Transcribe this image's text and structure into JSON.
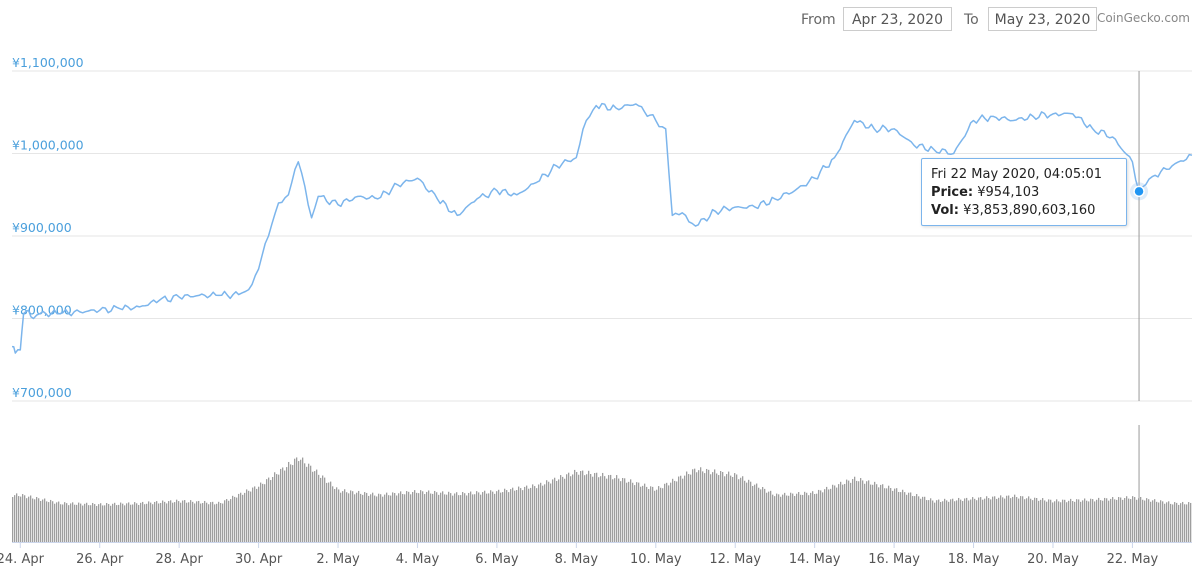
{
  "header": {
    "from_label": "From",
    "from_value": "Apr 23, 2020",
    "to_label": "To",
    "to_value": "May 23, 2020",
    "credit": "CoinGecko.com"
  },
  "tooltip": {
    "date": "Fri 22 May 2020, 04:05:01",
    "price_label": "Price:",
    "price_value": "¥954,103",
    "vol_label": "Vol:",
    "vol_value": "¥3,853,890,603,160"
  },
  "colors": {
    "price_line": "#7cb5ec",
    "volume_bars": "#9e9e9e",
    "axis_text": "#4a9fdc",
    "grid": "#e6e6e6"
  },
  "chart_data": [
    {
      "type": "line",
      "title": "",
      "xlabel": "",
      "ylabel": "",
      "ylim": [
        700000,
        1100000
      ],
      "y_ticks": [
        "¥700,000",
        "¥800,000",
        "¥900,000",
        "¥1,000,000",
        "¥1,100,000"
      ],
      "x_ticks": [
        "24. Apr",
        "26. Apr",
        "28. Apr",
        "30. Apr",
        "2. May",
        "4. May",
        "6. May",
        "8. May",
        "10. May",
        "12. May",
        "14. May",
        "16. May",
        "18. May",
        "20. May",
        "22. May"
      ],
      "x_range": [
        "2020-04-23T19:00",
        "2020-05-23T12:00"
      ],
      "grid": true,
      "series": [
        {
          "points": [
            [
              "2020-04-23T19:00",
              766000
            ],
            [
              "2020-04-23T21:00",
              758000
            ],
            [
              "2020-04-24T00:00",
              762000
            ],
            [
              "2020-04-24T02:00",
              806000
            ],
            [
              "2020-04-24T05:00",
              810000
            ],
            [
              "2020-04-24T08:00",
              800000
            ],
            [
              "2020-04-24T12:00",
              806000
            ],
            [
              "2020-04-25T00:00",
              806000
            ],
            [
              "2020-04-25T12:00",
              808000
            ],
            [
              "2020-04-26T00:00",
              810000
            ],
            [
              "2020-04-26T12:00",
              812000
            ],
            [
              "2020-04-27T00:00",
              814000
            ],
            [
              "2020-04-27T12:00",
              822000
            ],
            [
              "2020-04-28T00:00",
              826000
            ],
            [
              "2020-04-28T12:00",
              828000
            ],
            [
              "2020-04-29T00:00",
              828000
            ],
            [
              "2020-04-29T12:00",
              829000
            ],
            [
              "2020-04-29T18:00",
              835000
            ],
            [
              "2020-04-30T00:00",
              860000
            ],
            [
              "2020-04-30T06:00",
              900000
            ],
            [
              "2020-04-30T12:00",
              940000
            ],
            [
              "2020-04-30T18:00",
              950000
            ],
            [
              "2020-05-01T00:00",
              990000
            ],
            [
              "2020-05-01T04:00",
              960000
            ],
            [
              "2020-05-01T08:00",
              922000
            ],
            [
              "2020-05-01T12:00",
              948000
            ],
            [
              "2020-05-02T00:00",
              938000
            ],
            [
              "2020-05-02T12:00",
              948000
            ],
            [
              "2020-05-03T00:00",
              945000
            ],
            [
              "2020-05-03T12:00",
              962000
            ],
            [
              "2020-05-04T00:00",
              970000
            ],
            [
              "2020-05-04T12:00",
              945000
            ],
            [
              "2020-05-05T00:00",
              925000
            ],
            [
              "2020-05-05T12:00",
              945000
            ],
            [
              "2020-05-06T00:00",
              955000
            ],
            [
              "2020-05-06T12:00",
              950000
            ],
            [
              "2020-05-07T00:00",
              965000
            ],
            [
              "2020-05-07T12:00",
              985000
            ],
            [
              "2020-05-08T00:00",
              995000
            ],
            [
              "2020-05-08T06:00",
              1040000
            ],
            [
              "2020-05-08T12:00",
              1058000
            ],
            [
              "2020-05-09T00:00",
              1055000
            ],
            [
              "2020-05-09T12:00",
              1060000
            ],
            [
              "2020-05-10T00:00",
              1040000
            ],
            [
              "2020-05-10T06:00",
              1030000
            ],
            [
              "2020-05-10T10:00",
              925000
            ],
            [
              "2020-05-10T18:00",
              925000
            ],
            [
              "2020-05-11T00:00",
              912000
            ],
            [
              "2020-05-11T12:00",
              930000
            ],
            [
              "2020-05-12T00:00",
              935000
            ],
            [
              "2020-05-12T12:00",
              935000
            ],
            [
              "2020-05-13T00:00",
              945000
            ],
            [
              "2020-05-13T12:00",
              955000
            ],
            [
              "2020-05-14T00:00",
              970000
            ],
            [
              "2020-05-14T12:00",
              995000
            ],
            [
              "2020-05-15T00:00",
              1040000
            ],
            [
              "2020-05-15T12:00",
              1030000
            ],
            [
              "2020-05-16T00:00",
              1030000
            ],
            [
              "2020-05-16T12:00",
              1010000
            ],
            [
              "2020-05-17T00:00",
              1005000
            ],
            [
              "2020-05-17T12:00",
              1000000
            ],
            [
              "2020-05-18T00:00",
              1040000
            ],
            [
              "2020-05-18T12:00",
              1045000
            ],
            [
              "2020-05-19T00:00",
              1040000
            ],
            [
              "2020-05-19T12:00",
              1045000
            ],
            [
              "2020-05-20T00:00",
              1048000
            ],
            [
              "2020-05-20T12:00",
              1048000
            ],
            [
              "2020-05-21T00:00",
              1030000
            ],
            [
              "2020-05-21T12:00",
              1020000
            ],
            [
              "2020-05-22T00:00",
              990000
            ],
            [
              "2020-05-22T04:00",
              954103
            ],
            [
              "2020-05-22T12:00",
              972000
            ],
            [
              "2020-05-23T00:00",
              985000
            ],
            [
              "2020-05-23T12:00",
              998000
            ]
          ]
        }
      ]
    },
    {
      "type": "bar",
      "title": "",
      "xlabel": "",
      "ylabel": "",
      "series": [
        {
          "name": "",
          "points": [
            [
              "2020-04-24T00:00",
              0.4
            ],
            [
              "2020-04-25T00:00",
              0.33
            ],
            [
              "2020-04-26T00:00",
              0.32
            ],
            [
              "2020-04-27T00:00",
              0.33
            ],
            [
              "2020-04-28T00:00",
              0.35
            ],
            [
              "2020-04-29T00:00",
              0.33
            ],
            [
              "2020-04-30T00:00",
              0.48
            ],
            [
              "2020-05-01T00:00",
              0.72
            ],
            [
              "2020-05-02T00:00",
              0.44
            ],
            [
              "2020-05-03T00:00",
              0.4
            ],
            [
              "2020-05-04T00:00",
              0.43
            ],
            [
              "2020-05-05T00:00",
              0.41
            ],
            [
              "2020-05-06T00:00",
              0.43
            ],
            [
              "2020-05-07T00:00",
              0.48
            ],
            [
              "2020-05-08T00:00",
              0.6
            ],
            [
              "2020-05-09T00:00",
              0.55
            ],
            [
              "2020-05-10T00:00",
              0.45
            ],
            [
              "2020-05-11T00:00",
              0.62
            ],
            [
              "2020-05-12T00:00",
              0.57
            ],
            [
              "2020-05-13T00:00",
              0.4
            ],
            [
              "2020-05-14T00:00",
              0.42
            ],
            [
              "2020-05-15T00:00",
              0.54
            ],
            [
              "2020-05-16T00:00",
              0.45
            ],
            [
              "2020-05-17T00:00",
              0.35
            ],
            [
              "2020-05-18T00:00",
              0.37
            ],
            [
              "2020-05-19T00:00",
              0.39
            ],
            [
              "2020-05-20T00:00",
              0.35
            ],
            [
              "2020-05-21T00:00",
              0.36
            ],
            [
              "2020-05-22T00:00",
              0.38
            ],
            [
              "2020-05-23T00:00",
              0.33
            ]
          ]
        }
      ]
    }
  ]
}
